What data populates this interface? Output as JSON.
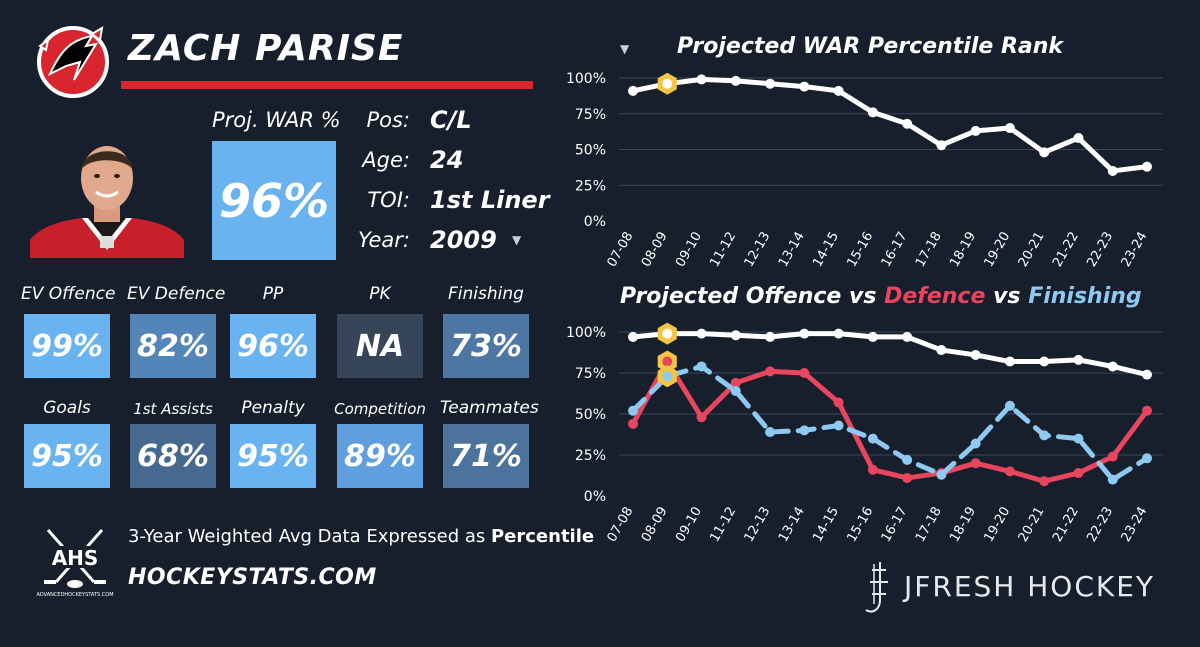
{
  "player": {
    "name": "ZACH PARISE",
    "proj_war_label": "Proj. WAR %",
    "proj_war_value": "96%",
    "info": [
      {
        "key": "Pos:",
        "value": "C/L"
      },
      {
        "key": "Age:",
        "value": "24"
      },
      {
        "key": "TOI:",
        "value": "1st Liner"
      },
      {
        "key": "Year:",
        "value": "2009"
      }
    ]
  },
  "metrics": [
    {
      "label": "EV Offence",
      "value": "99%",
      "color": "#69b3f0"
    },
    {
      "label": "EV Defence",
      "value": "82%",
      "color": "#5485b8"
    },
    {
      "label": "PP",
      "value": "96%",
      "color": "#69b3f0"
    },
    {
      "label": "PK",
      "value": "NA",
      "color": "#364558"
    },
    {
      "label": "Finishing",
      "value": "73%",
      "color": "#4d76a2"
    },
    {
      "label": "Goals",
      "value": "95%",
      "color": "#69b3f0"
    },
    {
      "label": "1st Assists",
      "value": "68%",
      "color": "#47698f"
    },
    {
      "label": "Penalty",
      "value": "95%",
      "color": "#69b3f0"
    },
    {
      "label": "Competition",
      "value": "89%",
      "color": "#5f9fde"
    },
    {
      "label": "Teammates",
      "value": "71%",
      "color": "#4d729b"
    }
  ],
  "footer": {
    "ahs_text": "AHS",
    "ahs_subtext": "ADVANCEDHOCKEYSTATS.COM",
    "caption_prefix": "3-Year Weighted Avg Data Expressed as",
    "caption_bold": "Percentile",
    "site": "HOCKEYSTATS.COM"
  },
  "brand": {
    "text": "JFRESH HOCKEY"
  },
  "colors": {
    "background": "#161f2b",
    "highlight_yellow": "#f3c543",
    "team_red": "#d9262e",
    "defence_red": "#e8455e",
    "finishing_blue": "#8ec9f2",
    "proj_box": "#69b3f0",
    "grid": "#3a4658"
  },
  "chart_titles": {
    "war_title": "Projected WAR Percentile Rank",
    "split_title_part1": "Projected Offence vs",
    "split_title_part2": "Defence",
    "split_title_part3": "vs",
    "split_title_part4": "Finishing"
  },
  "chart_data": [
    {
      "type": "line",
      "title": "Projected WAR Percentile Rank",
      "x": [
        "07-08",
        "08-09",
        "09-10",
        "11-12",
        "12-13",
        "13-14",
        "14-15",
        "15-16",
        "16-17",
        "17-18",
        "18-19",
        "19-20",
        "20-21",
        "21-22",
        "22-23",
        "23-24"
      ],
      "series": [
        {
          "values": [
            91,
            96,
            99,
            98,
            96,
            94,
            91,
            76,
            68,
            53,
            63,
            65,
            48,
            58,
            35,
            38
          ],
          "color": "#ffffff"
        }
      ],
      "highlight_index": 1,
      "yticks": [
        "100%",
        "75%",
        "50%",
        "25%",
        "0%"
      ],
      "ylim": [
        0,
        100
      ],
      "grid": true
    },
    {
      "type": "line",
      "title": "Projected Offence vs Defence vs Finishing",
      "x": [
        "07-08",
        "08-09",
        "09-10",
        "11-12",
        "12-13",
        "13-14",
        "14-15",
        "15-16",
        "16-17",
        "17-18",
        "18-19",
        "19-20",
        "20-21",
        "21-22",
        "22-23",
        "23-24"
      ],
      "series": [
        {
          "name": "Offence",
          "values": [
            97,
            99,
            99,
            98,
            97,
            99,
            99,
            97,
            97,
            89,
            86,
            82,
            82,
            83,
            79,
            74
          ],
          "color": "#ffffff",
          "style": "solid"
        },
        {
          "name": "Defence",
          "values": [
            44,
            82,
            48,
            69,
            76,
            75,
            57,
            16,
            11,
            14,
            20,
            15,
            9,
            14,
            24,
            52
          ],
          "color": "#e8455e",
          "style": "solid"
        },
        {
          "name": "Finishing",
          "values": [
            52,
            73,
            79,
            64,
            39,
            40,
            43,
            35,
            22,
            13,
            32,
            55,
            37,
            35,
            10,
            23
          ],
          "color": "#8ec9f2",
          "style": "dashed"
        }
      ],
      "highlight_index": 1,
      "yticks": [
        "100%",
        "75%",
        "50%",
        "25%",
        "0%"
      ],
      "ylim": [
        0,
        100
      ],
      "grid": true
    }
  ]
}
